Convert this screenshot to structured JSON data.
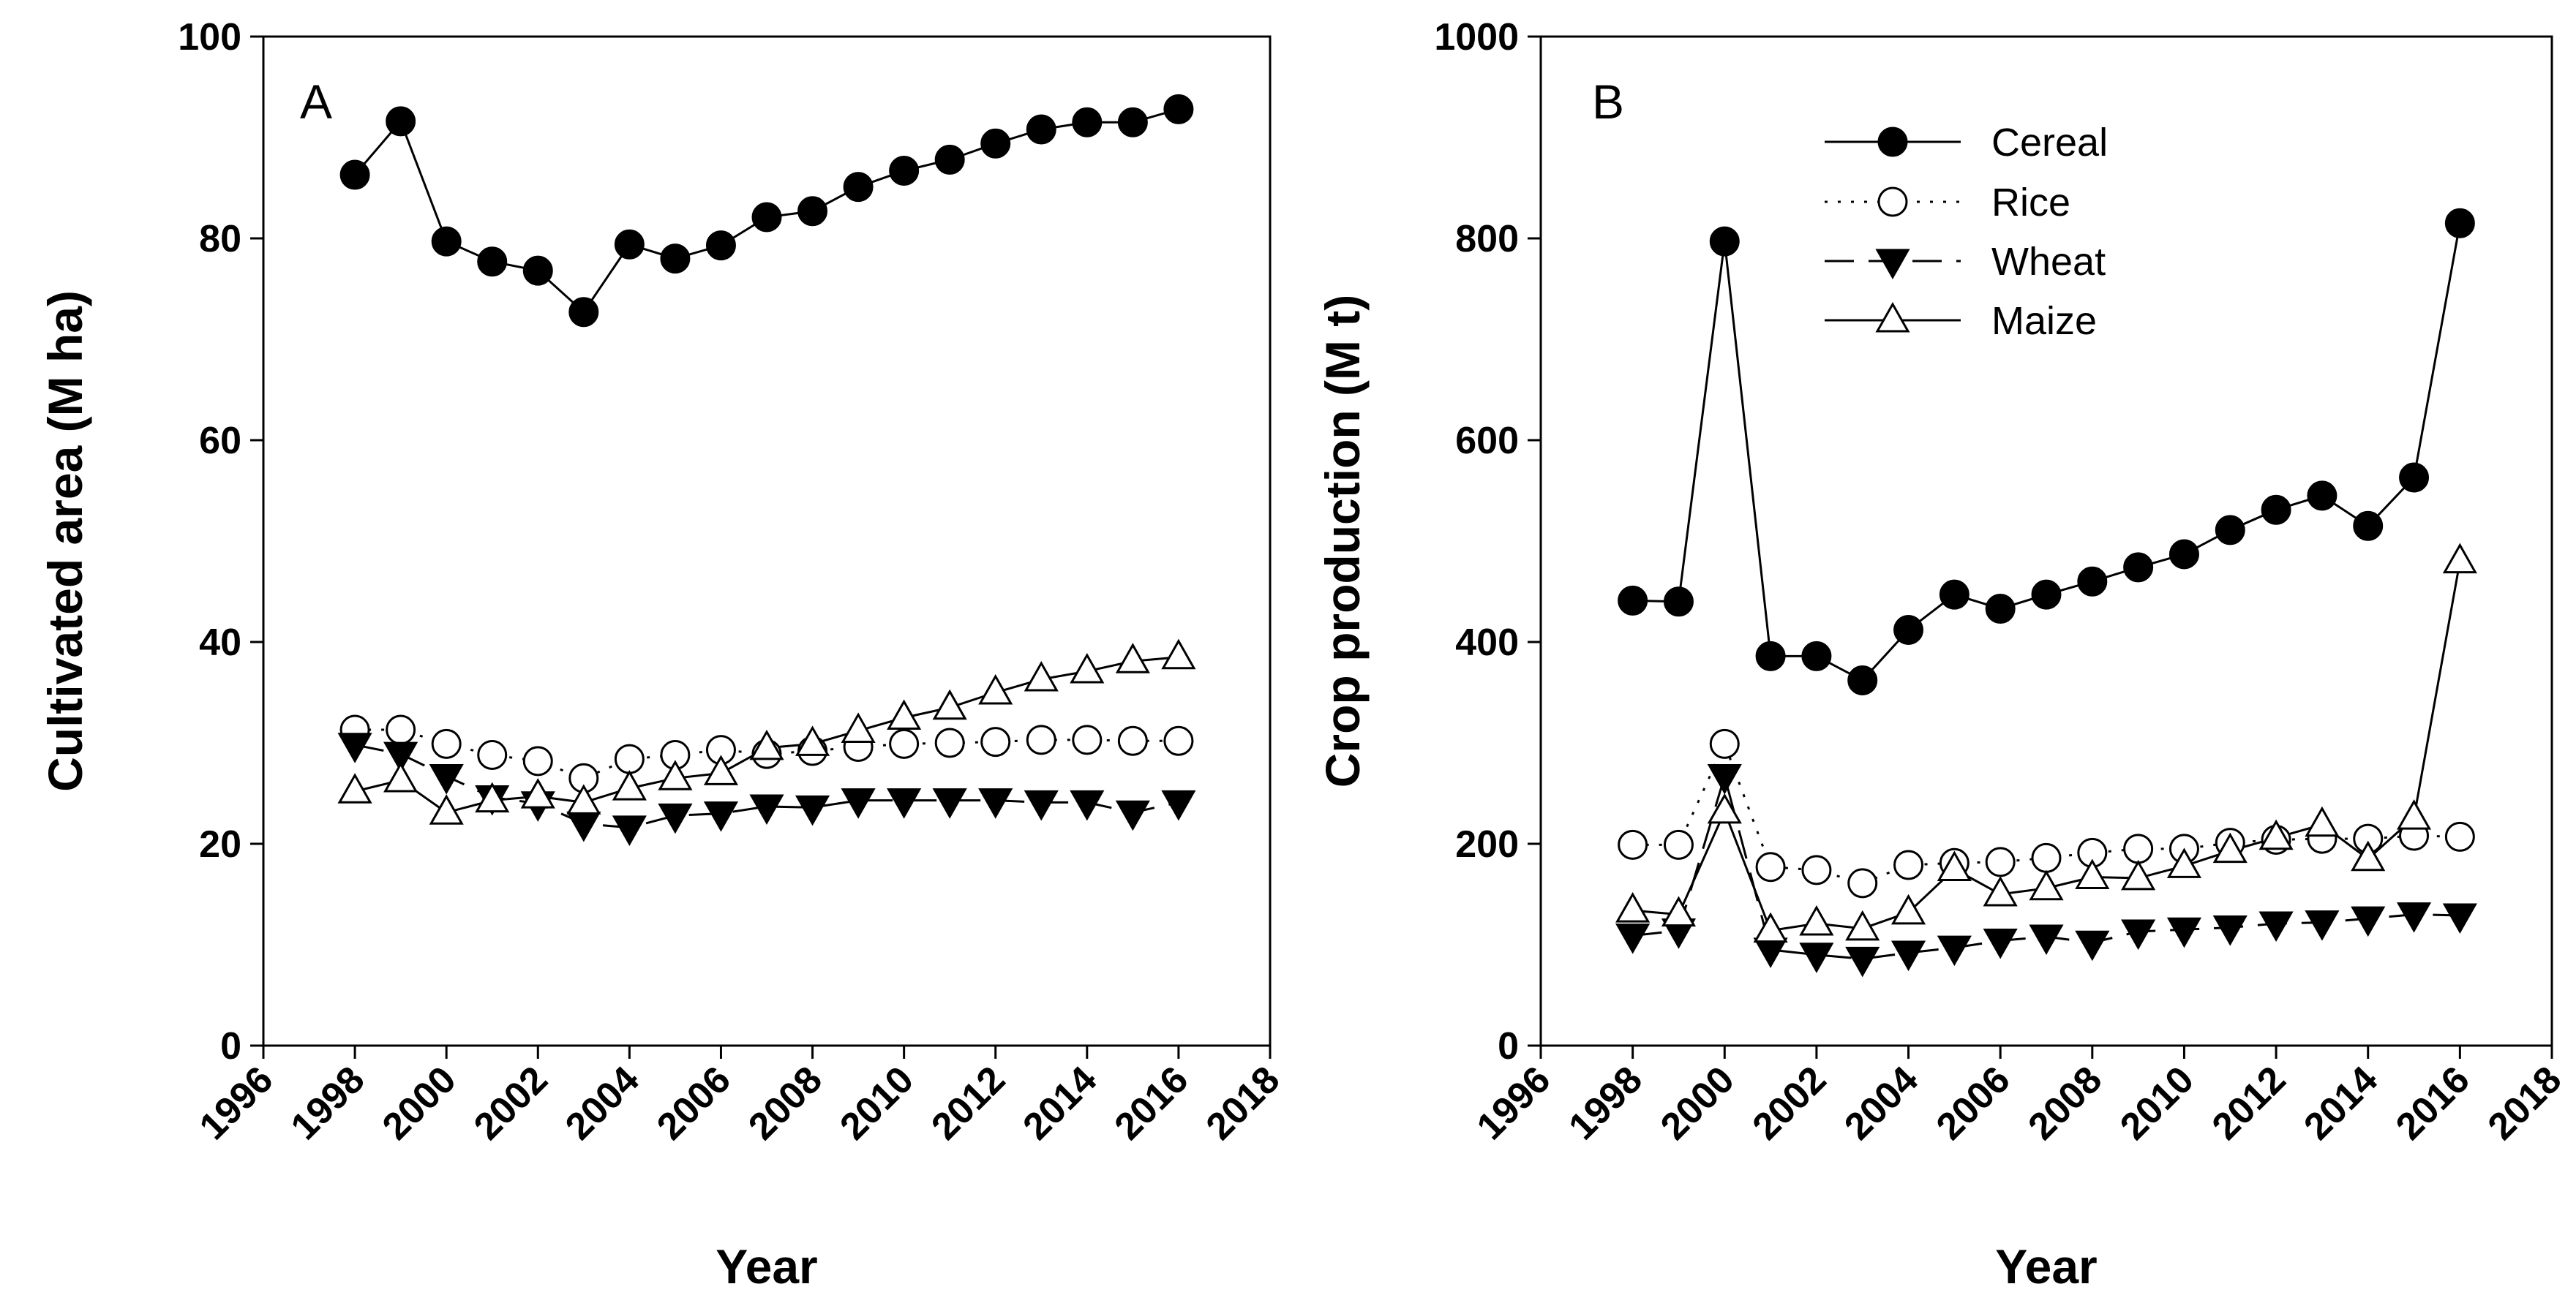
{
  "chart_data": [
    {
      "type": "line",
      "panel_label": "A",
      "title": "",
      "xlabel": "Year",
      "ylabel": "Cultivated area (M ha)",
      "xlim": [
        1996,
        2018
      ],
      "ylim": [
        0,
        100
      ],
      "xticks": [
        "1996",
        "1998",
        "2000",
        "2002",
        "2004",
        "2006",
        "2008",
        "2010",
        "2012",
        "2014",
        "2016",
        "2018"
      ],
      "yticks": [
        "0",
        "20",
        "40",
        "60",
        "80",
        "100"
      ],
      "x": [
        1998,
        1999,
        2000,
        2001,
        2002,
        2003,
        2004,
        2005,
        2006,
        2007,
        2008,
        2009,
        2010,
        2011,
        2012,
        2013,
        2014,
        2015,
        2016
      ],
      "series": [
        {
          "name": "Cereal",
          "style": "solid-filled-circle",
          "values": [
            86.3,
            91.6,
            79.7,
            77.7,
            76.8,
            72.7,
            79.4,
            78.0,
            79.3,
            82.1,
            82.7,
            85.1,
            86.7,
            87.8,
            89.4,
            90.8,
            91.5,
            91.5,
            92.8
          ]
        },
        {
          "name": "Rice",
          "style": "dotted-open-circle",
          "values": [
            31.3,
            31.3,
            29.9,
            28.8,
            28.2,
            26.5,
            28.4,
            28.8,
            29.3,
            28.9,
            29.2,
            29.6,
            29.9,
            30.0,
            30.1,
            30.3,
            30.3,
            30.2,
            30.2
          ]
        },
        {
          "name": "Wheat",
          "style": "dashed-filled-triangle-down",
          "values": [
            29.8,
            28.9,
            26.7,
            24.6,
            24.0,
            22.0,
            21.6,
            22.8,
            23.0,
            23.7,
            23.6,
            24.3,
            24.3,
            24.3,
            24.3,
            24.1,
            24.1,
            23.1,
            24.1
          ]
        },
        {
          "name": "Maize",
          "style": "solid-open-triangle-up",
          "values": [
            25.2,
            26.3,
            23.1,
            24.3,
            24.7,
            24.1,
            25.5,
            26.5,
            27.0,
            29.5,
            29.9,
            31.2,
            32.5,
            33.5,
            35.0,
            36.3,
            37.1,
            38.1,
            38.5
          ]
        }
      ]
    },
    {
      "type": "line",
      "panel_label": "B",
      "title": "",
      "xlabel": "Year",
      "ylabel": "Crop production (M t)",
      "xlim": [
        1996,
        2018
      ],
      "ylim": [
        0,
        1000
      ],
      "xticks": [
        "1996",
        "1998",
        "2000",
        "2002",
        "2004",
        "2006",
        "2008",
        "2010",
        "2012",
        "2014",
        "2016",
        "2018"
      ],
      "yticks": [
        "0",
        "200",
        "400",
        "600",
        "800",
        "1000"
      ],
      "legend": {
        "position": "top-center",
        "entries": [
          "Cereal",
          "Rice",
          "Wheat",
          "Maize"
        ]
      },
      "x": [
        1998,
        1999,
        2000,
        2001,
        2002,
        2003,
        2004,
        2005,
        2006,
        2007,
        2008,
        2009,
        2010,
        2011,
        2012,
        2013,
        2014,
        2015,
        2016
      ],
      "series": [
        {
          "name": "Cereal",
          "style": "solid-filled-circle",
          "values": [
            441,
            440,
            797,
            386,
            386,
            362,
            412,
            447,
            433,
            447,
            460,
            474,
            487,
            511,
            531,
            545,
            515,
            563,
            815
          ]
        },
        {
          "name": "Rice",
          "style": "dotted-open-circle",
          "values": [
            199,
            199,
            299,
            177,
            174,
            161,
            179,
            181,
            182,
            186,
            191,
            195,
            195,
            201,
            204,
            205,
            205,
            208,
            207
          ]
        },
        {
          "name": "Wheat",
          "style": "dashed-filled-triangle-down",
          "values": [
            109,
            114,
            267,
            95,
            90,
            86,
            92,
            97,
            104,
            108,
            102,
            113,
            115,
            117,
            121,
            122,
            126,
            130,
            129
          ]
        },
        {
          "name": "Maize",
          "style": "solid-open-triangle-up",
          "values": [
            134,
            130,
            232,
            114,
            121,
            116,
            132,
            175,
            150,
            156,
            167,
            166,
            178,
            193,
            206,
            219,
            185,
            226,
            480
          ]
        }
      ]
    }
  ]
}
